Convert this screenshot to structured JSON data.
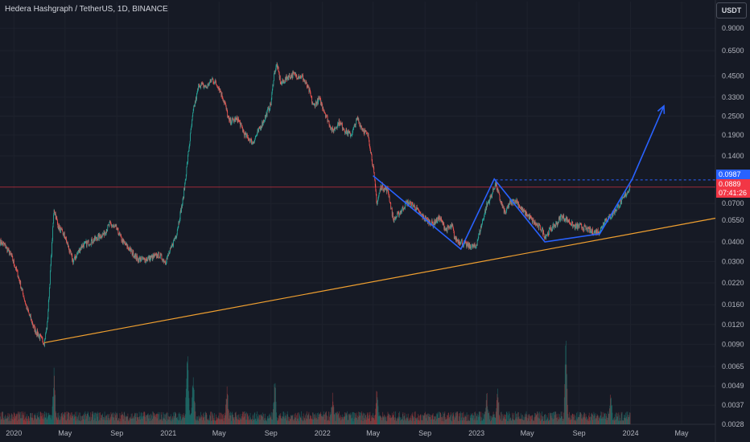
{
  "header": {
    "title": "Hedera Hashgraph / TetherUS, 1D, BINANCE",
    "unit_button": "USDT"
  },
  "price_tags": {
    "level": "0.0987",
    "current": "0.0889",
    "countdown": "07:41:26"
  },
  "colors": {
    "background": "#161a25",
    "grid": "#1e222d",
    "up": "#26a69a",
    "down": "#ef5350",
    "pattern": "#2962ff",
    "trendline": "#f0a030",
    "current_price_line": "#f23645"
  },
  "chart_data": {
    "type": "candlestick",
    "title": "Hedera Hashgraph / TetherUS, 1D, BINANCE",
    "y_scale": "log",
    "ylim": [
      0.0028,
      1.05
    ],
    "y_ticks": [
      0.9,
      0.65,
      0.45,
      0.33,
      0.25,
      0.19,
      0.14,
      0.0987,
      0.0889,
      0.07,
      0.055,
      0.04,
      0.03,
      0.022,
      0.016,
      0.012,
      0.009,
      0.0065,
      0.0049,
      0.0037,
      0.0028
    ],
    "y_tick_labels": [
      "0.9000",
      "0.6500",
      "0.4500",
      "0.3300",
      "0.2500",
      "0.1900",
      "0.1400",
      "",
      "",
      "0.0700",
      "0.0550",
      "0.0400",
      "0.0300",
      "0.0220",
      "0.0160",
      "0.0120",
      "0.0090",
      "0.0065",
      "0.0049",
      "0.0037",
      "0.0028"
    ],
    "x_range": [
      "2019-11-29",
      "2024-07-20"
    ],
    "x_ticks": [
      {
        "date": "2020-01-01",
        "label": "2020"
      },
      {
        "date": "2020-05-01",
        "label": "May"
      },
      {
        "date": "2020-09-01",
        "label": "Sep"
      },
      {
        "date": "2021-01-01",
        "label": "2021"
      },
      {
        "date": "2021-05-01",
        "label": "May"
      },
      {
        "date": "2021-09-01",
        "label": "Sep"
      },
      {
        "date": "2022-01-01",
        "label": "2022"
      },
      {
        "date": "2022-05-01",
        "label": "May"
      },
      {
        "date": "2022-09-01",
        "label": "Sep"
      },
      {
        "date": "2023-01-01",
        "label": "2023"
      },
      {
        "date": "2023-05-01",
        "label": "May"
      },
      {
        "date": "2023-09-01",
        "label": "Sep"
      },
      {
        "date": "2024-01-01",
        "label": "2024"
      },
      {
        "date": "2024-05-01",
        "label": "May"
      }
    ],
    "price_path": [
      [
        "2019-11-29",
        0.04
      ],
      [
        "2019-12-10",
        0.038
      ],
      [
        "2019-12-25",
        0.033
      ],
      [
        "2020-01-10",
        0.025
      ],
      [
        "2020-02-01",
        0.015
      ],
      [
        "2020-02-20",
        0.011
      ],
      [
        "2020-03-13",
        0.0092
      ],
      [
        "2020-03-20",
        0.012
      ],
      [
        "2020-04-05",
        0.065
      ],
      [
        "2020-04-15",
        0.05
      ],
      [
        "2020-05-01",
        0.043
      ],
      [
        "2020-05-20",
        0.03
      ],
      [
        "2020-06-10",
        0.038
      ],
      [
        "2020-07-01",
        0.04
      ],
      [
        "2020-08-01",
        0.045
      ],
      [
        "2020-08-15",
        0.052
      ],
      [
        "2020-09-01",
        0.048
      ],
      [
        "2020-09-15",
        0.04
      ],
      [
        "2020-10-01",
        0.036
      ],
      [
        "2020-10-20",
        0.031
      ],
      [
        "2020-11-10",
        0.031
      ],
      [
        "2020-12-10",
        0.033
      ],
      [
        "2020-12-25",
        0.03
      ],
      [
        "2021-01-05",
        0.035
      ],
      [
        "2021-01-20",
        0.045
      ],
      [
        "2021-02-05",
        0.075
      ],
      [
        "2021-02-15",
        0.13
      ],
      [
        "2021-03-01",
        0.27
      ],
      [
        "2021-03-15",
        0.4
      ],
      [
        "2021-04-01",
        0.38
      ],
      [
        "2021-04-15",
        0.43
      ],
      [
        "2021-05-01",
        0.38
      ],
      [
        "2021-05-15",
        0.3
      ],
      [
        "2021-05-25",
        0.23
      ],
      [
        "2021-06-15",
        0.24
      ],
      [
        "2021-07-01",
        0.19
      ],
      [
        "2021-07-20",
        0.17
      ],
      [
        "2021-08-10",
        0.22
      ],
      [
        "2021-09-01",
        0.3
      ],
      [
        "2021-09-08",
        0.46
      ],
      [
        "2021-09-15",
        0.53
      ],
      [
        "2021-09-25",
        0.4
      ],
      [
        "2021-10-10",
        0.44
      ],
      [
        "2021-10-25",
        0.46
      ],
      [
        "2021-11-15",
        0.44
      ],
      [
        "2021-12-01",
        0.36
      ],
      [
        "2021-12-10",
        0.29
      ],
      [
        "2021-12-25",
        0.32
      ],
      [
        "2022-01-10",
        0.25
      ],
      [
        "2022-01-25",
        0.2
      ],
      [
        "2022-02-10",
        0.23
      ],
      [
        "2022-02-25",
        0.2
      ],
      [
        "2022-03-10",
        0.19
      ],
      [
        "2022-03-25",
        0.24
      ],
      [
        "2022-04-05",
        0.21
      ],
      [
        "2022-04-20",
        0.185
      ],
      [
        "2022-05-01",
        0.12
      ],
      [
        "2022-05-10",
        0.07
      ],
      [
        "2022-05-20",
        0.09
      ],
      [
        "2022-06-05",
        0.085
      ],
      [
        "2022-06-18",
        0.055
      ],
      [
        "2022-07-01",
        0.06
      ],
      [
        "2022-07-20",
        0.071
      ],
      [
        "2022-08-05",
        0.068
      ],
      [
        "2022-08-20",
        0.06
      ],
      [
        "2022-09-05",
        0.055
      ],
      [
        "2022-09-20",
        0.052
      ],
      [
        "2022-10-05",
        0.057
      ],
      [
        "2022-10-20",
        0.048
      ],
      [
        "2022-11-05",
        0.05
      ],
      [
        "2022-11-10",
        0.042
      ],
      [
        "2022-11-25",
        0.04
      ],
      [
        "2022-12-10",
        0.038
      ],
      [
        "2022-12-30",
        0.037
      ],
      [
        "2023-01-10",
        0.048
      ],
      [
        "2023-01-25",
        0.068
      ],
      [
        "2023-02-05",
        0.078
      ],
      [
        "2023-02-15",
        0.094
      ],
      [
        "2023-02-25",
        0.075
      ],
      [
        "2023-03-10",
        0.06
      ],
      [
        "2023-03-20",
        0.07
      ],
      [
        "2023-04-05",
        0.073
      ],
      [
        "2023-04-20",
        0.063
      ],
      [
        "2023-05-05",
        0.058
      ],
      [
        "2023-05-20",
        0.052
      ],
      [
        "2023-06-05",
        0.048
      ],
      [
        "2023-06-12",
        0.043
      ],
      [
        "2023-06-25",
        0.048
      ],
      [
        "2023-07-10",
        0.052
      ],
      [
        "2023-07-20",
        0.058
      ],
      [
        "2023-08-05",
        0.055
      ],
      [
        "2023-08-20",
        0.05
      ],
      [
        "2023-09-05",
        0.05
      ],
      [
        "2023-09-20",
        0.048
      ],
      [
        "2023-10-05",
        0.046
      ],
      [
        "2023-10-20",
        0.047
      ],
      [
        "2023-11-01",
        0.055
      ],
      [
        "2023-11-15",
        0.058
      ],
      [
        "2023-12-01",
        0.066
      ],
      [
        "2023-12-15",
        0.075
      ],
      [
        "2023-12-31",
        0.0889
      ]
    ],
    "volume_spikes": [
      {
        "date": "2020-04-05",
        "height": 0.6
      },
      {
        "date": "2021-02-15",
        "height": 0.85
      },
      {
        "date": "2021-03-01",
        "height": 0.7
      },
      {
        "date": "2021-05-20",
        "height": 0.45
      },
      {
        "date": "2021-09-10",
        "height": 0.55
      },
      {
        "date": "2022-01-25",
        "height": 0.35
      },
      {
        "date": "2022-05-10",
        "height": 0.4
      },
      {
        "date": "2023-01-25",
        "height": 0.4
      },
      {
        "date": "2023-02-20",
        "height": 0.45
      },
      {
        "date": "2023-08-01",
        "height": 0.95
      },
      {
        "date": "2023-11-15",
        "height": 0.4
      }
    ],
    "drawings": {
      "trendline": {
        "from": [
          "2020-03-13",
          0.0092
        ],
        "to": [
          "2024-07-20",
          0.0565
        ]
      },
      "horizontal_level": {
        "from": "2023-02-15",
        "value": 0.0987
      },
      "current_price_line": {
        "value": 0.0889
      },
      "pattern_path": [
        [
          "2022-05-01",
          0.105
        ],
        [
          "2022-11-25",
          0.036
        ],
        [
          "2023-02-12",
          0.1
        ],
        [
          "2023-06-12",
          0.04
        ],
        [
          "2023-10-20",
          0.045
        ],
        [
          "2024-01-05",
          0.1
        ],
        [
          "2024-03-20",
          0.29
        ]
      ]
    }
  }
}
